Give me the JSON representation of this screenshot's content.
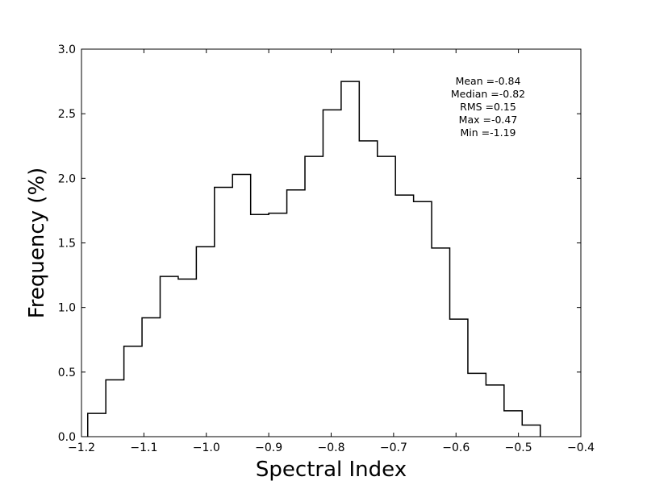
{
  "chart_data": {
    "type": "histogram",
    "xlabel": "Spectral Index",
    "ylabel": "Frequency (%)",
    "xlim": [
      -1.2,
      -0.4
    ],
    "ylim": [
      0.0,
      3.0
    ],
    "x_ticks": [
      -1.2,
      -1.1,
      -1.0,
      -0.9,
      -0.8,
      -0.7,
      -0.6,
      -0.5,
      -0.4
    ],
    "x_tick_labels": [
      "−1.2",
      "−1.1",
      "−1.0",
      "−0.9",
      "−0.8",
      "−0.7",
      "−0.6",
      "−0.5",
      "−0.4"
    ],
    "y_ticks": [
      0.0,
      0.5,
      1.0,
      1.5,
      2.0,
      2.5,
      3.0
    ],
    "y_tick_labels": [
      "0.0",
      "0.5",
      "1.0",
      "1.5",
      "2.0",
      "2.5",
      "3.0"
    ],
    "grid": false,
    "line_color": "#000000",
    "bin_edges": [
      -1.19,
      -1.161,
      -1.132,
      -1.103,
      -1.074,
      -1.045,
      -1.016,
      -0.987,
      -0.958,
      -0.929,
      -0.9,
      -0.871,
      -0.842,
      -0.813,
      -0.784,
      -0.755,
      -0.726,
      -0.697,
      -0.668,
      -0.639,
      -0.61,
      -0.581,
      -0.552,
      -0.523,
      -0.494,
      -0.465
    ],
    "values": [
      0.18,
      0.44,
      0.7,
      0.92,
      1.24,
      1.22,
      1.47,
      1.93,
      2.03,
      1.72,
      1.73,
      1.91,
      2.17,
      2.53,
      2.75,
      2.29,
      2.17,
      1.87,
      1.82,
      1.46,
      0.91,
      0.49,
      0.4,
      0.2,
      0.09
    ],
    "annotations": [
      "Mean =-0.84",
      "Median =-0.82",
      "RMS =0.15",
      "Max =-0.47",
      "Min =-1.19"
    ]
  }
}
